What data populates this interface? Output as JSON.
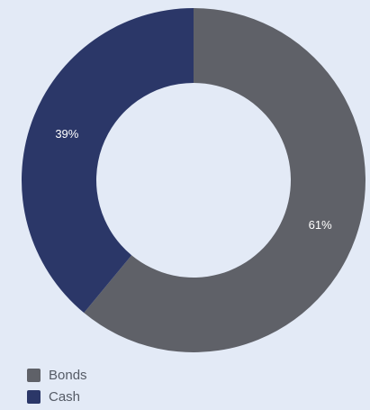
{
  "chart_data": {
    "type": "pie",
    "variant": "donut",
    "title": "",
    "series": [
      {
        "name": "Bonds",
        "value": 61,
        "label": "61%",
        "color": "#5f6168"
      },
      {
        "name": "Cash",
        "value": 39,
        "label": "39%",
        "color": "#2b3768"
      }
    ],
    "legend_position": "bottom-left",
    "background": "#e3eaf6",
    "label_color": "#ffffff",
    "legend_text_color": "#555b66"
  }
}
